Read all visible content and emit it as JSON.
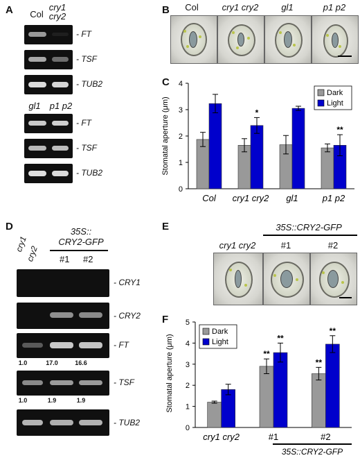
{
  "panels": {
    "A": "A",
    "B": "B",
    "C": "C",
    "D": "D",
    "E": "E",
    "F": "F"
  },
  "panelA": {
    "top_lanes": [
      {
        "l1": "Col",
        "l2": ""
      },
      {
        "l1": "cry1",
        "l2": "cry2"
      }
    ],
    "bottom_lanes": [
      {
        "l1": "gl1",
        "l2": ""
      },
      {
        "l1": "p1 p2",
        "l2": ""
      }
    ],
    "genes": [
      "FT",
      "TSF",
      "TUB2"
    ]
  },
  "panelB": {
    "labels": [
      "Col",
      "cry1 cry2",
      "gl1",
      "p1 p2"
    ]
  },
  "panelD": {
    "lanes_left": [
      "cry1",
      "cry2"
    ],
    "construct": [
      "35S::",
      "CRY2-GFP"
    ],
    "lines": [
      "#1",
      "#2"
    ],
    "genes": [
      "CRY1",
      "CRY2",
      "FT",
      "TSF",
      "TUB2"
    ],
    "ft_quant": [
      "1.0",
      "17.0",
      "16.6"
    ],
    "tsf_quant": [
      "1.0",
      "1.9",
      "1.9"
    ]
  },
  "panelE": {
    "construct": "35S::CRY2-GFP",
    "labels": [
      "cry1 cry2",
      "#1",
      "#2"
    ]
  },
  "chart_data": [
    {
      "panel": "C",
      "type": "bar",
      "categories": [
        "Col",
        "cry1 cry2",
        "gl1",
        "p1 p2"
      ],
      "ylabel": "Stomatal aperture (μm)",
      "ylim": [
        0,
        4
      ],
      "yticks": [
        "0",
        "1",
        "2",
        "3",
        "4"
      ],
      "legend_position": "top-right",
      "series": [
        {
          "name": "Dark",
          "color": "#999999",
          "values": [
            1.87,
            1.65,
            1.67,
            1.55
          ],
          "errors": [
            0.27,
            0.25,
            0.35,
            0.15
          ]
        },
        {
          "name": "Light",
          "color": "#0000cc",
          "values": [
            3.23,
            2.4,
            3.05,
            1.65
          ],
          "errors": [
            0.35,
            0.3,
            0.08,
            0.4
          ]
        }
      ],
      "annotations": [
        {
          "category": "cry1 cry2",
          "series": "Light",
          "text": "*"
        },
        {
          "category": "p1 p2",
          "series": "Light",
          "text": "**"
        }
      ]
    },
    {
      "panel": "F",
      "type": "bar",
      "categories": [
        "cry1 cry2",
        "#1",
        "#2"
      ],
      "group_label": "35S::CRY2-GFP",
      "ylabel": "Stomatal aperture (μm)",
      "ylim": [
        0,
        5
      ],
      "yticks": [
        "0",
        "1",
        "2",
        "3",
        "4",
        "5"
      ],
      "legend_position": "top-left",
      "series": [
        {
          "name": "Dark",
          "color": "#999999",
          "values": [
            1.2,
            2.9,
            2.55
          ],
          "errors": [
            0.05,
            0.35,
            0.3
          ]
        },
        {
          "name": "Light",
          "color": "#0000cc",
          "values": [
            1.8,
            3.55,
            3.95
          ],
          "errors": [
            0.25,
            0.45,
            0.4
          ]
        }
      ],
      "annotations": [
        {
          "category": "#1",
          "series": "Dark",
          "text": "**"
        },
        {
          "category": "#1",
          "series": "Light",
          "text": "**"
        },
        {
          "category": "#2",
          "series": "Dark",
          "text": "**"
        },
        {
          "category": "#2",
          "series": "Light",
          "text": "**"
        }
      ]
    }
  ]
}
